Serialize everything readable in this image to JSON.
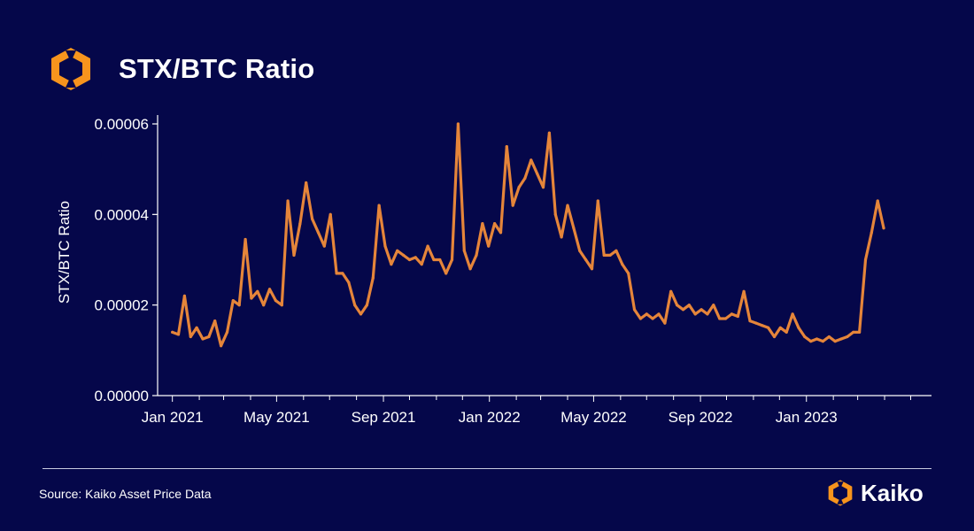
{
  "header": {
    "title": "STX/BTC Ratio",
    "logo_icon": "kaiko-logo-icon"
  },
  "footer": {
    "source": "Source: Kaiko Asset Price Data",
    "brand": "Kaiko"
  },
  "colors": {
    "background": "#05074a",
    "line": "#e5853a",
    "axis": "#ffffff",
    "logo_orange": "#f7941d"
  },
  "chart_data": {
    "type": "line",
    "title": "STX/BTC Ratio",
    "xlabel": "",
    "ylabel": "STX/BTC Ratio",
    "ylim": [
      0,
      6e-05
    ],
    "xlim": [
      "2020-12-15",
      "2023-05-25"
    ],
    "yticks": [
      "0.00000",
      "0.00002",
      "0.00004",
      "0.00006"
    ],
    "ytick_values": [
      0,
      2e-05,
      4e-05,
      6e-05
    ],
    "xticks": [
      "Jan 2021",
      "May 2021",
      "Sep 2021",
      "Jan 2022",
      "May 2022",
      "Sep 2022",
      "Jan 2023"
    ],
    "xtick_dates": [
      "2021-01-01",
      "2021-05-01",
      "2021-09-01",
      "2022-01-01",
      "2022-05-01",
      "2022-09-01",
      "2023-01-01"
    ],
    "grid": false,
    "series": [
      {
        "name": "",
        "x": [
          "2021-01-01",
          "2021-01-08",
          "2021-01-15",
          "2021-01-22",
          "2021-01-29",
          "2021-02-05",
          "2021-02-12",
          "2021-02-19",
          "2021-02-26",
          "2021-03-05",
          "2021-03-12",
          "2021-03-19",
          "2021-03-26",
          "2021-04-02",
          "2021-04-09",
          "2021-04-16",
          "2021-04-23",
          "2021-04-30",
          "2021-05-07",
          "2021-05-14",
          "2021-05-21",
          "2021-05-28",
          "2021-06-04",
          "2021-06-11",
          "2021-06-18",
          "2021-06-25",
          "2021-07-02",
          "2021-07-09",
          "2021-07-16",
          "2021-07-23",
          "2021-07-30",
          "2021-08-06",
          "2021-08-13",
          "2021-08-20",
          "2021-08-27",
          "2021-09-03",
          "2021-09-10",
          "2021-09-17",
          "2021-09-24",
          "2021-10-01",
          "2021-10-08",
          "2021-10-15",
          "2021-10-22",
          "2021-10-29",
          "2021-11-05",
          "2021-11-12",
          "2021-11-19",
          "2021-11-26",
          "2021-12-03",
          "2021-12-10",
          "2021-12-17",
          "2021-12-24",
          "2021-12-31",
          "2022-01-07",
          "2022-01-14",
          "2022-01-21",
          "2022-01-28",
          "2022-02-04",
          "2022-02-11",
          "2022-02-18",
          "2022-02-25",
          "2022-03-04",
          "2022-03-11",
          "2022-03-18",
          "2022-03-25",
          "2022-04-01",
          "2022-04-08",
          "2022-04-15",
          "2022-04-22",
          "2022-04-29",
          "2022-05-06",
          "2022-05-13",
          "2022-05-20",
          "2022-05-27",
          "2022-06-03",
          "2022-06-10",
          "2022-06-17",
          "2022-06-24",
          "2022-07-01",
          "2022-07-08",
          "2022-07-15",
          "2022-07-22",
          "2022-07-29",
          "2022-08-05",
          "2022-08-12",
          "2022-08-19",
          "2022-08-26",
          "2022-09-02",
          "2022-09-09",
          "2022-09-16",
          "2022-09-23",
          "2022-09-30",
          "2022-10-07",
          "2022-10-14",
          "2022-10-21",
          "2022-10-28",
          "2022-11-04",
          "2022-11-11",
          "2022-11-18",
          "2022-11-25",
          "2022-12-02",
          "2022-12-09",
          "2022-12-16",
          "2022-12-23",
          "2022-12-30",
          "2023-01-06",
          "2023-01-13",
          "2023-01-20",
          "2023-01-27",
          "2023-02-03",
          "2023-02-10",
          "2023-02-17",
          "2023-02-24",
          "2023-03-03",
          "2023-03-10",
          "2023-03-17",
          "2023-03-24",
          "2023-03-31"
        ],
        "y": [
          1.4e-05,
          1.35e-05,
          2.2e-05,
          1.3e-05,
          1.5e-05,
          1.25e-05,
          1.3e-05,
          1.65e-05,
          1.1e-05,
          1.4e-05,
          2.1e-05,
          2e-05,
          3.45e-05,
          2.15e-05,
          2.3e-05,
          2e-05,
          2.35e-05,
          2.1e-05,
          2e-05,
          4.3e-05,
          3.1e-05,
          3.8e-05,
          4.7e-05,
          3.9e-05,
          3.6e-05,
          3.3e-05,
          4e-05,
          2.7e-05,
          2.7e-05,
          2.5e-05,
          2e-05,
          1.8e-05,
          2e-05,
          2.6e-05,
          4.2e-05,
          3.3e-05,
          2.9e-05,
          3.2e-05,
          3.1e-05,
          3e-05,
          3.05e-05,
          2.9e-05,
          3.3e-05,
          3e-05,
          3e-05,
          2.7e-05,
          3e-05,
          6e-05,
          3.2e-05,
          2.8e-05,
          3.1e-05,
          3.8e-05,
          3.3e-05,
          3.8e-05,
          3.6e-05,
          5.5e-05,
          4.2e-05,
          4.6e-05,
          4.8e-05,
          5.2e-05,
          4.9e-05,
          4.6e-05,
          5.8e-05,
          4e-05,
          3.5e-05,
          4.2e-05,
          3.7e-05,
          3.2e-05,
          3e-05,
          2.8e-05,
          4.3e-05,
          3.1e-05,
          3.1e-05,
          3.2e-05,
          2.9e-05,
          2.7e-05,
          1.9e-05,
          1.7e-05,
          1.8e-05,
          1.7e-05,
          1.8e-05,
          1.6e-05,
          2.3e-05,
          2e-05,
          1.9e-05,
          2e-05,
          1.8e-05,
          1.9e-05,
          1.8e-05,
          2e-05,
          1.7e-05,
          1.7e-05,
          1.8e-05,
          1.75e-05,
          2.3e-05,
          1.65e-05,
          1.6e-05,
          1.55e-05,
          1.5e-05,
          1.3e-05,
          1.5e-05,
          1.4e-05,
          1.8e-05,
          1.5e-05,
          1.3e-05,
          1.2e-05,
          1.25e-05,
          1.2e-05,
          1.3e-05,
          1.2e-05,
          1.25e-05,
          1.3e-05,
          1.4e-05,
          1.4e-05,
          3e-05,
          3.6e-05,
          4.3e-05,
          3.7e-05
        ]
      }
    ]
  }
}
